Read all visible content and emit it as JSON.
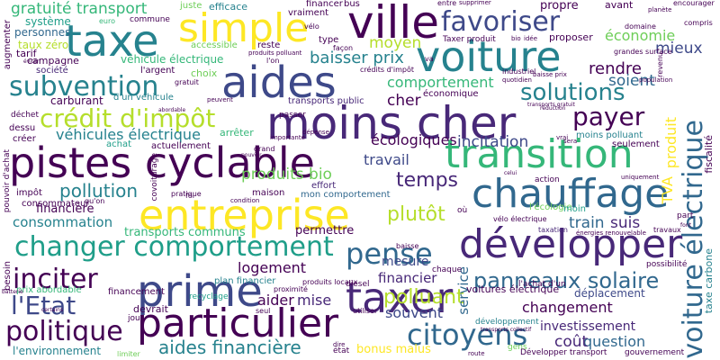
{
  "colors": {
    "c1": "#440154",
    "c2": "#482878",
    "c3": "#3e4989",
    "c4": "#31688e",
    "c5": "#26828e",
    "c6": "#1f9e89",
    "c7": "#35b779",
    "c8": "#6ece58",
    "c9": "#b5de2b",
    "c10": "#fde725"
  },
  "words": {
    "moins_cher": "moins cher",
    "aides": "aides",
    "pistes_cyclable": "pistes cyclable",
    "ville": "ville",
    "voiture": "voiture",
    "taxe": "taxe",
    "simple": "simple",
    "transition": "transition",
    "chauffage": "chauffage",
    "entreprise": "entreprise",
    "developper": "développer",
    "prime": "prime",
    "particulier": "particulier",
    "taxer": "taxer",
    "changer_comportement": "changer comportement",
    "voiture_electrique": "voiture électrique",
    "favoriser": "favoriser",
    "credit_dimpot": "crédit d'impôt",
    "subvention": "subvention",
    "solutions": "solutions",
    "payer": "payer",
    "pense": "pense",
    "citoyens": "citoyens",
    "politique": "politique",
    "inciter": "inciter",
    "letat": "l'Etat",
    "panneaux_solaire": "panneaux solaire",
    "gratuite_transport": "gratuité transport",
    "vehicules_electrique": "véhicules électrique",
    "pollution": "pollution",
    "temps": "temps",
    "plutot": "plutôt",
    "polluant": "polluant",
    "aides_financiere": "aides financière",
    "mieux": "mieux",
    "economie": "économie",
    "soient": "soient",
    "rendre": "rendre",
    "baisser_prix": "baisser prix",
    "moyen": "moyen",
    "comportement": "comportement",
    "cher": "cher",
    "ecologiques": "écologiques",
    "incitation": "incitation",
    "travail": "travail",
    "produits_bio": "produits bio",
    "logement": "logement",
    "aider": "aider",
    "mise": "mise",
    "souvent": "souvent",
    "question": "question",
    "cout": "coût",
    "changement": "changement",
    "consommation": "consommation",
    "financiere": "financière",
    "transports_communs": "transports communs",
    "permettre": "permettre",
    "mesure": "mesure",
    "financier": "financier",
    "train": "train",
    "suis": "suis",
    "tva": "TVA",
    "produit": "produit",
    "service": "service",
    "investissement": "investissement",
    "bonus_malus": "bonus malus",
    "deplacement": "déplacement",
    "systeme": "système",
    "personnes": "personnes",
    "taux_zero": "taux zéro",
    "tarif": "tarif",
    "campagne": "campagne",
    "societe": "société",
    "carburant": "carburant",
    "vehicule_electrique": "véhicule électrique",
    "choix": "choix",
    "largent": "l'argent",
    "dun_vehicule": "d'un véhicule",
    "achat": "achat",
    "actuellement": "actuellement",
    "arreter": "arrêter",
    "effort": "effort",
    "maison": "maison",
    "mon_comportement": "mon comportement",
    "consommateur": "consommateur",
    "impot": "impôt",
    "financement": "financement",
    "recyclage": "recyclage",
    "plan_financier": "plan financier",
    "devrait": "devrait",
    "prix_abordable": "prix abordable",
    "lenvironnement": "l'environnement",
    "limiter": "limiter",
    "etat": "état",
    "propre": "propre",
    "avant": "avant",
    "proposer": "proposer",
    "taxer_produit": "Taxer produit",
    "industriel": "industriel",
    "economique": "économique",
    "transports_public": "transports public",
    "accessible": "accessible",
    "reste": "reste",
    "efficace": "efficace",
    "juste": "juste",
    "financer": "financer",
    "vraiment": "vraiment",
    "entre": "entre",
    "commune": "commune",
    "bus": "bus",
    "euro": "euro",
    "dechet": "déchet",
    "dessu": "dessu",
    "creer": "créer",
    "moins_polluant": "moins polluant",
    "seulement": "seulement",
    "fiscalite": "fiscalité",
    "taxe_carbone": "taxe carbone",
    "vie": "vie",
    "part": "part",
    "lecologie": "l'écologie",
    "moin": "moin",
    "action": "action",
    "taxation": "taxation",
    "travaux": "travaux",
    "possibilite": "possibilité",
    "voitures_electrique": "voitures électrique",
    "lachat_dun": "l'achat d'un",
    "chaque": "chaque",
    "diesel": "diesel",
    "produits_locaux": "produits locaux",
    "baisse": "baisse",
    "developpement": "développement",
    "gens": "gens",
    "developper_transport": "Développer transport",
    "gouvernement": "gouvernement",
    "encourager": "encourager",
    "domaine": "domaine",
    "compris": "compris",
    "planete": "planète",
    "augmenter": "augmenter",
    "besoin": "besoin",
    "pouvoir_dachat": "pouvoir d'achat",
    "jour": "jour",
    "seul": "seul",
    "utiliser": "utiliser",
    "route": "route",
    "covoiturage": "covoiturage",
    "grandes_surface": "grandes surface",
    "revenu": "revenu",
    "population": "population",
    "velo_electrique": "vélo électrique",
    "energies_renouvelable": "énergies renouvelable",
    "uniquement": "uniquement",
    "passer": "passer",
    "gratuit": "gratuit",
    "importante": "importante",
    "quon": "qu'on",
    "pratique": "pratique",
    "condition": "condition",
    "foi": "foi",
    "grand": "grand",
    "velo": "vélo",
    "type": "type",
    "facon": "façon",
    "va": "va",
    "lon": "l'on",
    "credits_dimpot": "crédits d'impôt",
    "quotidien": "quotidien",
    "depense": "dépense",
    "reduction": "réduction",
    "supprimer": "supprimer",
    "idee": "idée",
    "bio": "bio",
    "sera": "sera",
    "vrai": "vrai",
    "eviter": "éviter",
    "certains": "certains",
    "batterie": "batterie",
    "dire": "dire",
    "peuvent": "peuvent",
    "pouvoir": "pouvoir",
    "abordable": "abordable",
    "chose": "chose",
    "ou": "où",
    "celui": "celui",
    "pas": "pas",
    "transports_collectif": "transports collectif",
    "baisse_prix": "baisse prix",
    "produits_polluant": "produits polluant",
    "moyen_de": "moyen de",
    "transports_gratuit": "transports gratuit",
    "financement_cher": "financement",
    "vehicule_propre": "véhicule propre",
    "proximite": "proximité",
    "commun": "commun",
    "font": "font",
    "faire": "faire"
  }
}
